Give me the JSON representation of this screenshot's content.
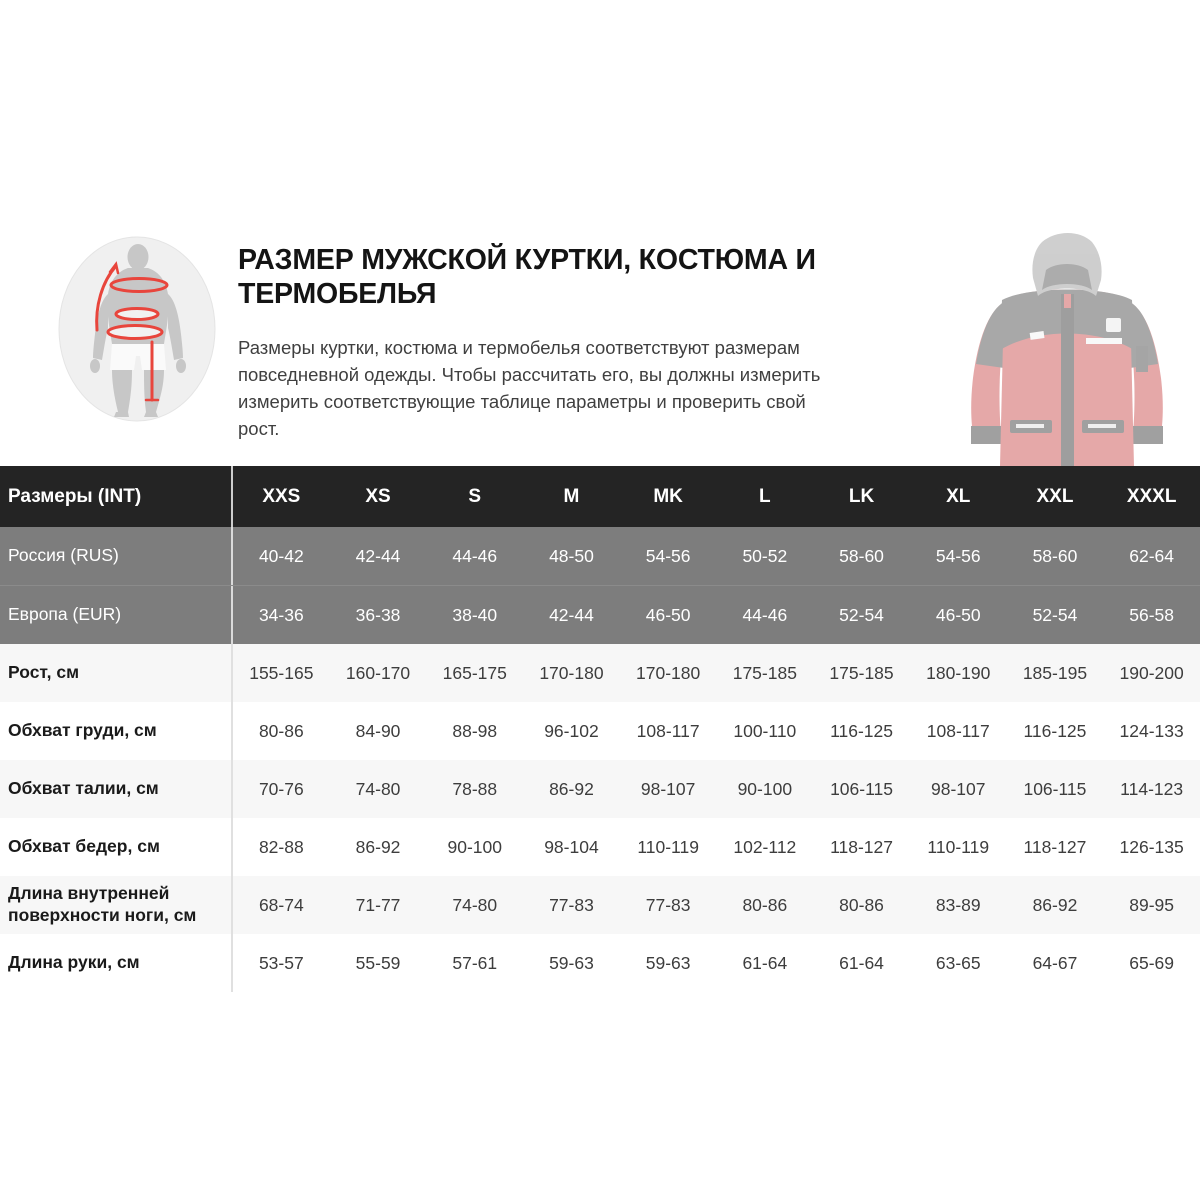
{
  "intro": {
    "title": "РАЗМЕР МУЖСКОЙ КУРТКИ, КОСТЮМА И ТЕРМОБЕЛЬЯ",
    "description_lines": [
      "Размеры куртки, костюма и термобелья соответствуют размерам",
      "повседневной одежды. Чтобы рассчитать его, вы должны измерить",
      "измерить соответствующие таблице параметры и проверить свой",
      "рост."
    ]
  },
  "icons": {
    "badge": "body-measurement-diagram",
    "photo": "jacket-product-photo"
  },
  "colors": {
    "accent_red": "#e8453c",
    "header_bg": "#242424",
    "gray_row_bg": "#7d7d7d",
    "light_row_bg": "#f7f7f7",
    "jacket_red": "#c64040"
  },
  "table": {
    "header": {
      "label": "Размеры (INT)",
      "sizes": [
        "XXS",
        "XS",
        "S",
        "M",
        "MK",
        "L",
        "LK",
        "XL",
        "XXL",
        "XXXL"
      ]
    },
    "rows": [
      {
        "label": "Россия (RUS)",
        "style": "gray",
        "values": [
          "40-42",
          "42-44",
          "44-46",
          "48-50",
          "54-56",
          "50-52",
          "58-60",
          "54-56",
          "58-60",
          "62-64"
        ]
      },
      {
        "label": "Европа (EUR)",
        "style": "gray",
        "values": [
          "34-36",
          "36-38",
          "38-40",
          "42-44",
          "46-50",
          "44-46",
          "52-54",
          "46-50",
          "52-54",
          "56-58"
        ]
      },
      {
        "label": "Рост, см",
        "style": "light",
        "values": [
          "155-165",
          "160-170",
          "165-175",
          "170-180",
          "170-180",
          "175-185",
          "175-185",
          "180-190",
          "185-195",
          "190-200"
        ]
      },
      {
        "label": "Обхват груди, см",
        "style": "white",
        "values": [
          "80-86",
          "84-90",
          "88-98",
          "96-102",
          "108-117",
          "100-110",
          "116-125",
          "108-117",
          "116-125",
          "124-133"
        ]
      },
      {
        "label": "Обхват талии, см",
        "style": "light",
        "values": [
          "70-76",
          "74-80",
          "78-88",
          "86-92",
          "98-107",
          "90-100",
          "106-115",
          "98-107",
          "106-115",
          "114-123"
        ]
      },
      {
        "label": "Обхват бедер, см",
        "style": "white",
        "values": [
          "82-88",
          "86-92",
          "90-100",
          "98-104",
          "110-119",
          "102-112",
          "118-127",
          "110-119",
          "118-127",
          "126-135"
        ]
      },
      {
        "label": "Длина внутренней поверхности ноги, см",
        "style": "light",
        "values": [
          "68-74",
          "71-77",
          "74-80",
          "77-83",
          "77-83",
          "80-86",
          "80-86",
          "83-89",
          "86-92",
          "89-95"
        ]
      },
      {
        "label": "Длина руки, см",
        "style": "white",
        "values": [
          "53-57",
          "55-59",
          "57-61",
          "59-63",
          "59-63",
          "61-64",
          "61-64",
          "63-65",
          "64-67",
          "65-69"
        ]
      }
    ]
  }
}
